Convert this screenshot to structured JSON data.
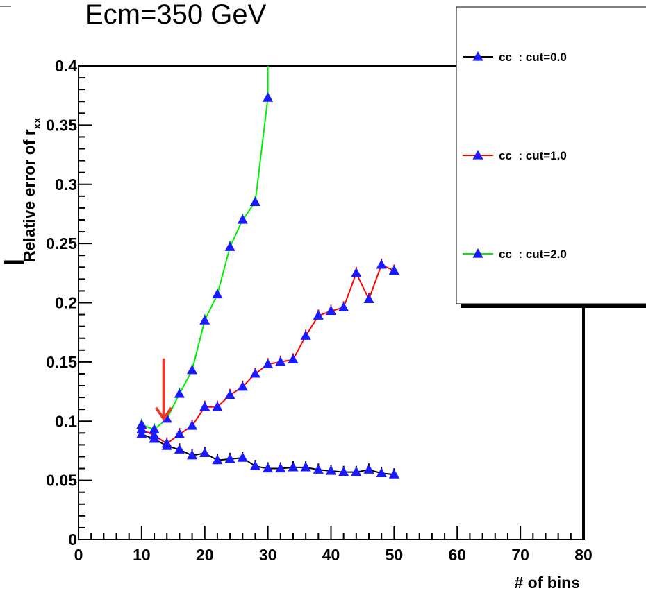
{
  "page_title": "Ecm=350 GeV",
  "chart_data": {
    "type": "line",
    "title": "Ecm=350 GeV",
    "xlabel": "# of bins",
    "ylabel": "Relative error of r",
    "ylabel_subscript": "xx",
    "xlim": [
      0,
      80
    ],
    "ylim": [
      0,
      0.4
    ],
    "x_ticks": [
      0,
      10,
      20,
      30,
      40,
      50,
      60,
      70,
      80
    ],
    "x_tick_labels": [
      "0",
      "10",
      "20",
      "30",
      "40",
      "50",
      "60",
      "70",
      "80"
    ],
    "y_ticks": [
      0,
      0.05,
      0.1,
      0.15,
      0.2,
      0.25,
      0.3,
      0.35,
      0.4
    ],
    "y_tick_labels": [
      "0",
      "0.05",
      "0.1",
      "0.15",
      "0.2",
      "0.25",
      "0.3",
      "0.35",
      "0.4"
    ],
    "grid": false,
    "legend_position": "top-right",
    "marker": "filled-triangle",
    "marker_color": "#1a1aff",
    "series": [
      {
        "name": "cc  : cut=0.0",
        "color": "#000000",
        "x": [
          10,
          12,
          14,
          16,
          18,
          20,
          22,
          24,
          26,
          28,
          30,
          32,
          34,
          36,
          38,
          40,
          42,
          44,
          46,
          48,
          50
        ],
        "y": [
          0.089,
          0.085,
          0.079,
          0.076,
          0.071,
          0.073,
          0.067,
          0.068,
          0.069,
          0.062,
          0.06,
          0.06,
          0.061,
          0.061,
          0.059,
          0.058,
          0.057,
          0.057,
          0.059,
          0.056,
          0.055
        ]
      },
      {
        "name": "cc  : cut=1.0",
        "color": "#ff0000",
        "x": [
          10,
          12,
          14,
          16,
          18,
          20,
          22,
          24,
          26,
          28,
          30,
          32,
          34,
          36,
          38,
          40,
          42,
          44,
          46,
          48,
          50
        ],
        "y": [
          0.093,
          0.088,
          0.081,
          0.089,
          0.096,
          0.112,
          0.112,
          0.122,
          0.129,
          0.14,
          0.148,
          0.15,
          0.152,
          0.172,
          0.189,
          0.193,
          0.196,
          0.225,
          0.203,
          0.232,
          0.227
        ]
      },
      {
        "name": "cc  : cut=2.0",
        "color": "#00ee00",
        "x": [
          10,
          12,
          14,
          16,
          18,
          20,
          22,
          24,
          26,
          28,
          30
        ],
        "y": [
          0.097,
          0.093,
          0.102,
          0.123,
          0.143,
          0.185,
          0.207,
          0.247,
          0.27,
          0.285,
          0.373
        ]
      }
    ],
    "annotations": [
      {
        "type": "arrow",
        "color": "#e8392a",
        "x": 13.5,
        "y_from": 0.153,
        "y_to": 0.102
      }
    ]
  }
}
